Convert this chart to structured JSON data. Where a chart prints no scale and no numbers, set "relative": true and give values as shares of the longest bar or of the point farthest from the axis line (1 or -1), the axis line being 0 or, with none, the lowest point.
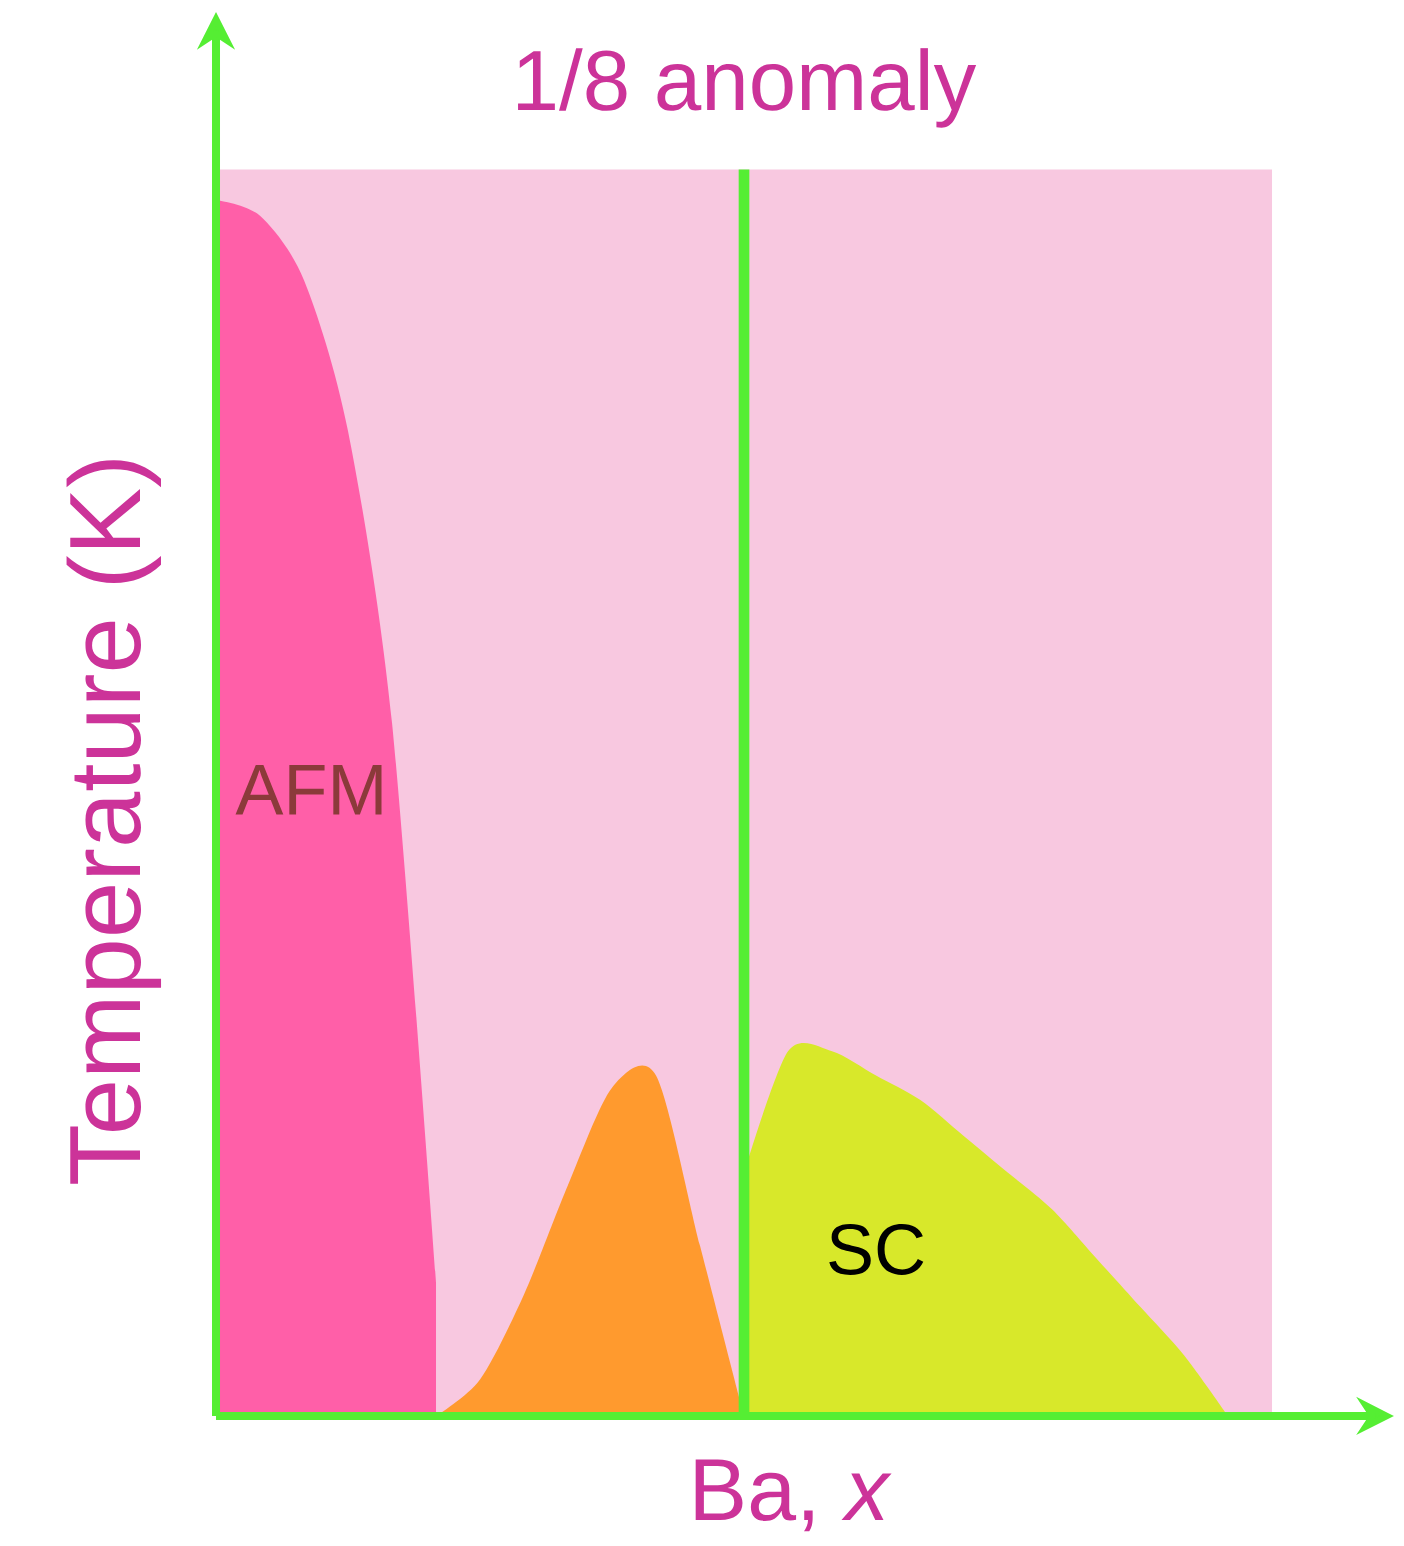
{
  "chart_data": {
    "type": "area",
    "relative": true,
    "xlabel": "Ba, *x*",
    "ylabel": "Temperature (K)",
    "categories": [
      null,
      null,
      null,
      null,
      null,
      null,
      null,
      null,
      null,
      null,
      null,
      null,
      null,
      null,
      null,
      null,
      null,
      null,
      null,
      null,
      null,
      null,
      null,
      null,
      null
    ],
    "series": [
      {
        "color": "#ff5fa8",
        "values": [
          1.0,
          0.987,
          0.934,
          0.81,
          0.57,
          0.11,
          null,
          null,
          null,
          null,
          null,
          null,
          null,
          null,
          null,
          null,
          null,
          null,
          null,
          null,
          null,
          null,
          null,
          null,
          null
        ]
      },
      {
        "color": "#ff9a2e",
        "values": [
          null,
          null,
          null,
          null,
          null,
          0,
          0.03,
          0.1,
          0.19,
          0.27,
          0.28,
          0.14,
          0,
          null,
          null,
          null,
          null,
          null,
          null,
          null,
          null,
          null,
          null,
          null,
          null
        ]
      },
      {
        "color": "#d8e82a",
        "values": [
          null,
          null,
          null,
          null,
          null,
          null,
          null,
          null,
          null,
          null,
          null,
          null,
          0.2,
          0.3,
          0.3,
          0.28,
          0.26,
          0.23,
          0.2,
          0.17,
          0.13,
          0.09,
          0.05,
          0,
          null
        ]
      }
    ],
    "title": "1/8 anomaly",
    "annotations": [
      "AFM",
      "SC"
    ]
  }
}
